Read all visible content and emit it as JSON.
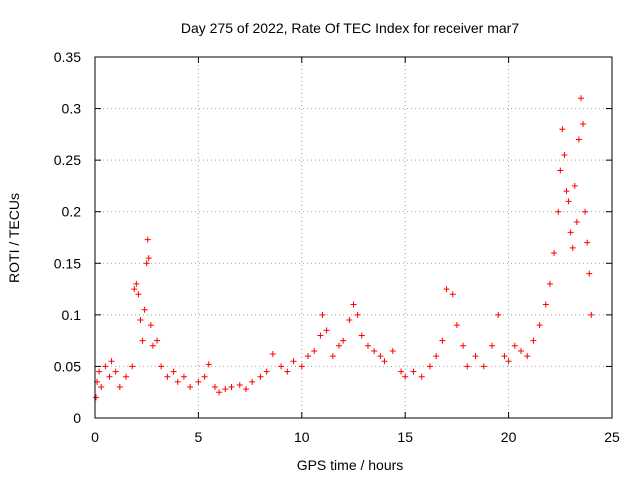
{
  "chart_data": {
    "type": "scatter",
    "title": "Day 275 of 2022, Rate Of TEC Index for receiver mar7",
    "xlabel": "GPS time / hours",
    "ylabel": "ROTI / TECUs",
    "xlim": [
      0,
      25
    ],
    "ylim": [
      0,
      0.35
    ],
    "xticks": [
      "0",
      "5",
      "10",
      "15",
      "20",
      "25"
    ],
    "yticks": [
      "0",
      "0.05",
      "0.1",
      "0.15",
      "0.2",
      "0.25",
      "0.3",
      "0.35"
    ],
    "xtick_values": [
      0,
      5,
      10,
      15,
      20,
      25
    ],
    "ytick_values": [
      0,
      0.05,
      0.1,
      0.15,
      0.2,
      0.25,
      0.3,
      0.35
    ],
    "grid": true,
    "marker": "+",
    "color": "#ff0000",
    "series": [
      {
        "points": [
          [
            0.05,
            0.02
          ],
          [
            0.1,
            0.035
          ],
          [
            0.2,
            0.045
          ],
          [
            0.3,
            0.03
          ],
          [
            0.5,
            0.05
          ],
          [
            0.7,
            0.04
          ],
          [
            0.8,
            0.055
          ],
          [
            1.0,
            0.045
          ],
          [
            1.2,
            0.03
          ],
          [
            1.5,
            0.04
          ],
          [
            1.8,
            0.05
          ],
          [
            1.9,
            0.125
          ],
          [
            2.0,
            0.13
          ],
          [
            2.1,
            0.12
          ],
          [
            2.2,
            0.095
          ],
          [
            2.3,
            0.075
          ],
          [
            2.4,
            0.105
          ],
          [
            2.5,
            0.15
          ],
          [
            2.55,
            0.173
          ],
          [
            2.6,
            0.155
          ],
          [
            2.7,
            0.09
          ],
          [
            2.8,
            0.07
          ],
          [
            3.0,
            0.075
          ],
          [
            3.2,
            0.05
          ],
          [
            3.5,
            0.04
          ],
          [
            3.8,
            0.045
          ],
          [
            4.0,
            0.035
          ],
          [
            4.3,
            0.04
          ],
          [
            4.6,
            0.03
          ],
          [
            5.0,
            0.035
          ],
          [
            5.3,
            0.04
          ],
          [
            5.5,
            0.052
          ],
          [
            5.8,
            0.03
          ],
          [
            6.0,
            0.025
          ],
          [
            6.3,
            0.028
          ],
          [
            6.6,
            0.03
          ],
          [
            7.0,
            0.032
          ],
          [
            7.3,
            0.028
          ],
          [
            7.6,
            0.035
          ],
          [
            8.0,
            0.04
          ],
          [
            8.3,
            0.045
          ],
          [
            8.6,
            0.062
          ],
          [
            9.0,
            0.05
          ],
          [
            9.3,
            0.045
          ],
          [
            9.6,
            0.055
          ],
          [
            10.0,
            0.05
          ],
          [
            10.3,
            0.06
          ],
          [
            10.6,
            0.065
          ],
          [
            10.9,
            0.08
          ],
          [
            11.0,
            0.1
          ],
          [
            11.2,
            0.085
          ],
          [
            11.5,
            0.06
          ],
          [
            11.8,
            0.07
          ],
          [
            12.0,
            0.075
          ],
          [
            12.3,
            0.095
          ],
          [
            12.5,
            0.11
          ],
          [
            12.7,
            0.1
          ],
          [
            12.9,
            0.08
          ],
          [
            13.2,
            0.07
          ],
          [
            13.5,
            0.065
          ],
          [
            13.8,
            0.06
          ],
          [
            14.0,
            0.055
          ],
          [
            14.4,
            0.065
          ],
          [
            14.8,
            0.045
          ],
          [
            15.0,
            0.04
          ],
          [
            15.4,
            0.045
          ],
          [
            15.8,
            0.04
          ],
          [
            16.2,
            0.05
          ],
          [
            16.5,
            0.06
          ],
          [
            16.8,
            0.075
          ],
          [
            17.0,
            0.125
          ],
          [
            17.3,
            0.12
          ],
          [
            17.5,
            0.09
          ],
          [
            17.8,
            0.07
          ],
          [
            18.0,
            0.05
          ],
          [
            18.4,
            0.06
          ],
          [
            18.8,
            0.05
          ],
          [
            19.2,
            0.07
          ],
          [
            19.5,
            0.1
          ],
          [
            19.8,
            0.06
          ],
          [
            20.0,
            0.055
          ],
          [
            20.3,
            0.07
          ],
          [
            20.6,
            0.065
          ],
          [
            20.9,
            0.06
          ],
          [
            21.2,
            0.075
          ],
          [
            21.5,
            0.09
          ],
          [
            21.8,
            0.11
          ],
          [
            22.0,
            0.13
          ],
          [
            22.2,
            0.16
          ],
          [
            22.4,
            0.2
          ],
          [
            22.5,
            0.24
          ],
          [
            22.6,
            0.28
          ],
          [
            22.7,
            0.255
          ],
          [
            22.8,
            0.22
          ],
          [
            22.9,
            0.21
          ],
          [
            23.0,
            0.18
          ],
          [
            23.1,
            0.165
          ],
          [
            23.2,
            0.225
          ],
          [
            23.3,
            0.19
          ],
          [
            23.4,
            0.27
          ],
          [
            23.5,
            0.31
          ],
          [
            23.6,
            0.285
          ],
          [
            23.7,
            0.2
          ],
          [
            23.8,
            0.17
          ],
          [
            23.9,
            0.14
          ],
          [
            24.0,
            0.1
          ]
        ]
      }
    ]
  }
}
